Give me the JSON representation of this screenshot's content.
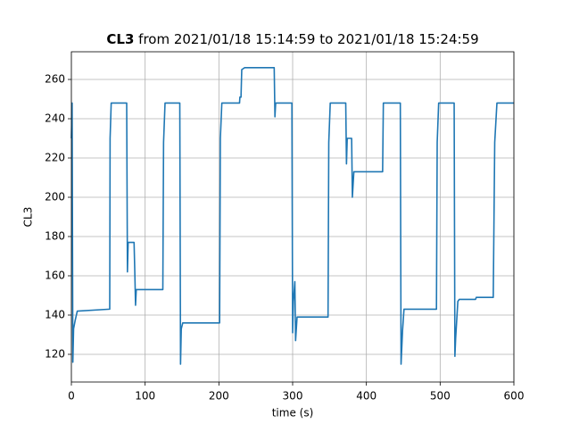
{
  "chart_data": {
    "type": "line",
    "title": {
      "name": "CL3",
      "range": "from 2021/01/18 15:14:59 to 2021/01/18 15:24:59"
    },
    "xlabel": "time (s)",
    "ylabel": "CL3",
    "x": [
      0,
      1,
      2,
      3,
      5,
      8,
      52,
      52.5,
      54,
      75,
      76,
      77,
      85,
      86,
      87,
      88,
      124,
      125,
      127,
      147,
      148,
      149,
      151,
      201,
      202,
      204,
      228,
      228.5,
      230,
      231,
      235,
      275,
      276,
      277,
      299,
      300,
      301,
      303,
      304,
      306,
      348,
      349,
      351,
      372,
      373,
      374,
      380,
      381,
      383,
      422,
      423,
      446,
      447,
      449,
      451,
      495,
      496,
      498,
      519,
      520,
      521,
      524,
      526,
      548,
      549,
      572,
      574,
      577,
      600
    ],
    "series": [
      {
        "name": "CL3",
        "color": "#1f77b4",
        "values": [
          230,
          248,
          116,
          133,
          137,
          142,
          143,
          230,
          248,
          248,
          162,
          177,
          177,
          162,
          145,
          153,
          153,
          228,
          248,
          248,
          115,
          133,
          136,
          136,
          230,
          248,
          248,
          251,
          251,
          265,
          266,
          266,
          241,
          248,
          248,
          131,
          147,
          157,
          127,
          139,
          139,
          228,
          248,
          248,
          217,
          230,
          230,
          200,
          213,
          213,
          248,
          248,
          115,
          132,
          143,
          143,
          228,
          248,
          248,
          119,
          128,
          147,
          148,
          148,
          149,
          149,
          228,
          248,
          248
        ]
      }
    ],
    "xlim": [
      0,
      600
    ],
    "xticks": [
      0,
      100,
      200,
      300,
      400,
      500,
      600
    ],
    "ylim": [
      105.9,
      274.1
    ],
    "yticks": [
      120,
      140,
      160,
      180,
      200,
      220,
      240,
      260
    ],
    "grid": true
  }
}
